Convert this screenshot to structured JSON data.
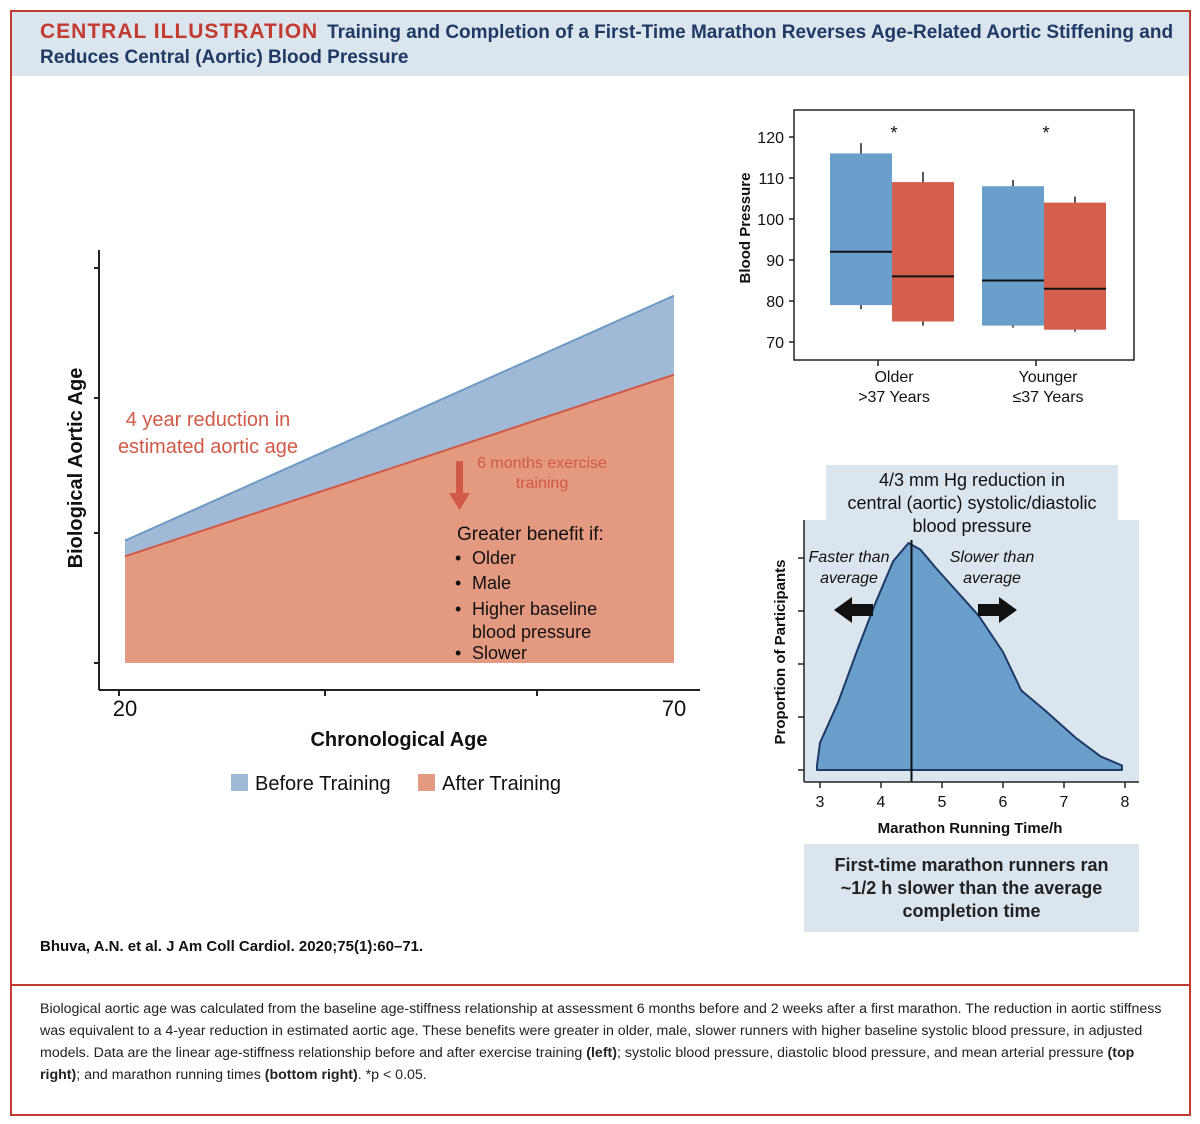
{
  "header": {
    "tag": "CENTRAL ILLUSTRATION",
    "title": "Training and Completion of a First-Time Marathon Reverses Age-Related Aortic Stiffening and Reduces Central (Aortic) Blood Pressure"
  },
  "left_panel": {
    "reduction_line1": "4 year reduction in",
    "reduction_line2": "estimated aortic age",
    "exercise_line1": "6 months exercise",
    "exercise_line2": "training",
    "benefit_title": "Greater benefit if:",
    "benefit_items": [
      "Older",
      "Male",
      "Higher baseline",
      "blood pressure",
      "Slower"
    ],
    "colors": {
      "before": "#9fb9d6",
      "before_line": "#6f9ac6",
      "after": "#e39a80",
      "after_line": "#d05a47",
      "annotation": "#d05a47"
    }
  },
  "top_right": {
    "asterisk": "*",
    "group1_line1": "Older",
    "group1_line2": ">37 Years",
    "group2_line1": "Younger",
    "group2_line2": "≤37 Years",
    "note_line1": "4/3 mm Hg reduction in",
    "note_line2": "central (aortic) systolic/diastolic",
    "note_line3": "blood pressure",
    "colors": {
      "before": "#6a9fcc",
      "after": "#d45f4c"
    }
  },
  "bottom_right": {
    "faster_line1": "Faster than",
    "faster_line2": "average",
    "slower_line1": "Slower than",
    "slower_line2": "average",
    "note_line1": "First-time marathon runners ran",
    "note_line2": "~1/2 h slower than the average",
    "note_line3": "completion time",
    "colors": {
      "fill": "#6a9fcc",
      "stroke": "#1f3a66"
    }
  },
  "chart_data": [
    {
      "type": "area",
      "xlabel": "Chronological Age",
      "ylabel": "Biological Aortic Age",
      "x_tick_labels": [
        "20",
        "70"
      ],
      "xlim": [
        20,
        70
      ],
      "series": [
        {
          "name": "Before Training",
          "x": [
            20,
            70
          ],
          "y": [
            0.31,
            0.93
          ]
        },
        {
          "name": "After Training",
          "x": [
            20,
            70
          ],
          "y": [
            0.27,
            0.73
          ]
        }
      ],
      "legend": [
        "Before Training",
        "After Training"
      ],
      "legend_position": "bottom"
    },
    {
      "type": "box",
      "xlabel": "",
      "ylabel": "Blood Pressure",
      "ylim": [
        68,
        126
      ],
      "y_ticks": [
        70,
        80,
        90,
        100,
        110,
        120
      ],
      "categories": [
        "Older >37 Years",
        "Younger ≤37 Years"
      ],
      "series": [
        {
          "name": "Before",
          "boxes": [
            {
              "low": 78,
              "q1": 79,
              "median": 92,
              "q3": 116,
              "high": 118.5
            },
            {
              "low": 73.5,
              "q1": 74,
              "median": 85,
              "q3": 108,
              "high": 109.5
            }
          ]
        },
        {
          "name": "After",
          "boxes": [
            {
              "low": 74,
              "q1": 75,
              "median": 86,
              "q3": 109,
              "high": 111.5
            },
            {
              "low": 72.5,
              "q1": 73,
              "median": 83,
              "q3": 104,
              "high": 105.5
            }
          ]
        }
      ],
      "annotations": [
        "*",
        "*"
      ]
    },
    {
      "type": "area",
      "xlabel": "Marathon Running Time/h",
      "ylabel": "Proportion of Participants",
      "xlim": [
        2.8,
        8.2
      ],
      "x_ticks": [
        3,
        4,
        5,
        6,
        7,
        8
      ],
      "average_line_x": 4.5,
      "series": [
        {
          "name": "",
          "x": [
            2.95,
            3.0,
            3.3,
            3.6,
            3.9,
            4.2,
            4.45,
            4.65,
            4.9,
            5.2,
            5.6,
            6.0,
            6.3,
            6.7,
            7.2,
            7.6,
            7.95
          ],
          "y": [
            0.02,
            0.12,
            0.3,
            0.52,
            0.73,
            0.92,
            1.0,
            0.97,
            0.89,
            0.8,
            0.68,
            0.52,
            0.35,
            0.26,
            0.14,
            0.06,
            0.02
          ]
        }
      ]
    }
  ],
  "citation": "Bhuva, A.N. et al. J Am Coll Cardiol. 2020;75(1):60–71.",
  "caption": {
    "text1": "Biological aortic age was calculated from the baseline age-stiffness relationship at assessment 6 months before and 2 weeks after a first marathon. The reduction in aortic stiffness was equivalent to a 4-year reduction in estimated aortic age. These benefits were greater in older, male, slower runners with higher baseline systolic blood pressure, in adjusted models. Data are the linear age-stiffness relationship before and after exercise training ",
    "bold1": "(left)",
    "text2": "; systolic blood pressure, diastolic blood pressure, and mean arterial pressure ",
    "bold2": "(top right)",
    "text3": "; and marathon running times ",
    "bold3": "(bottom right)",
    "text4": ". *p < 0.05."
  }
}
